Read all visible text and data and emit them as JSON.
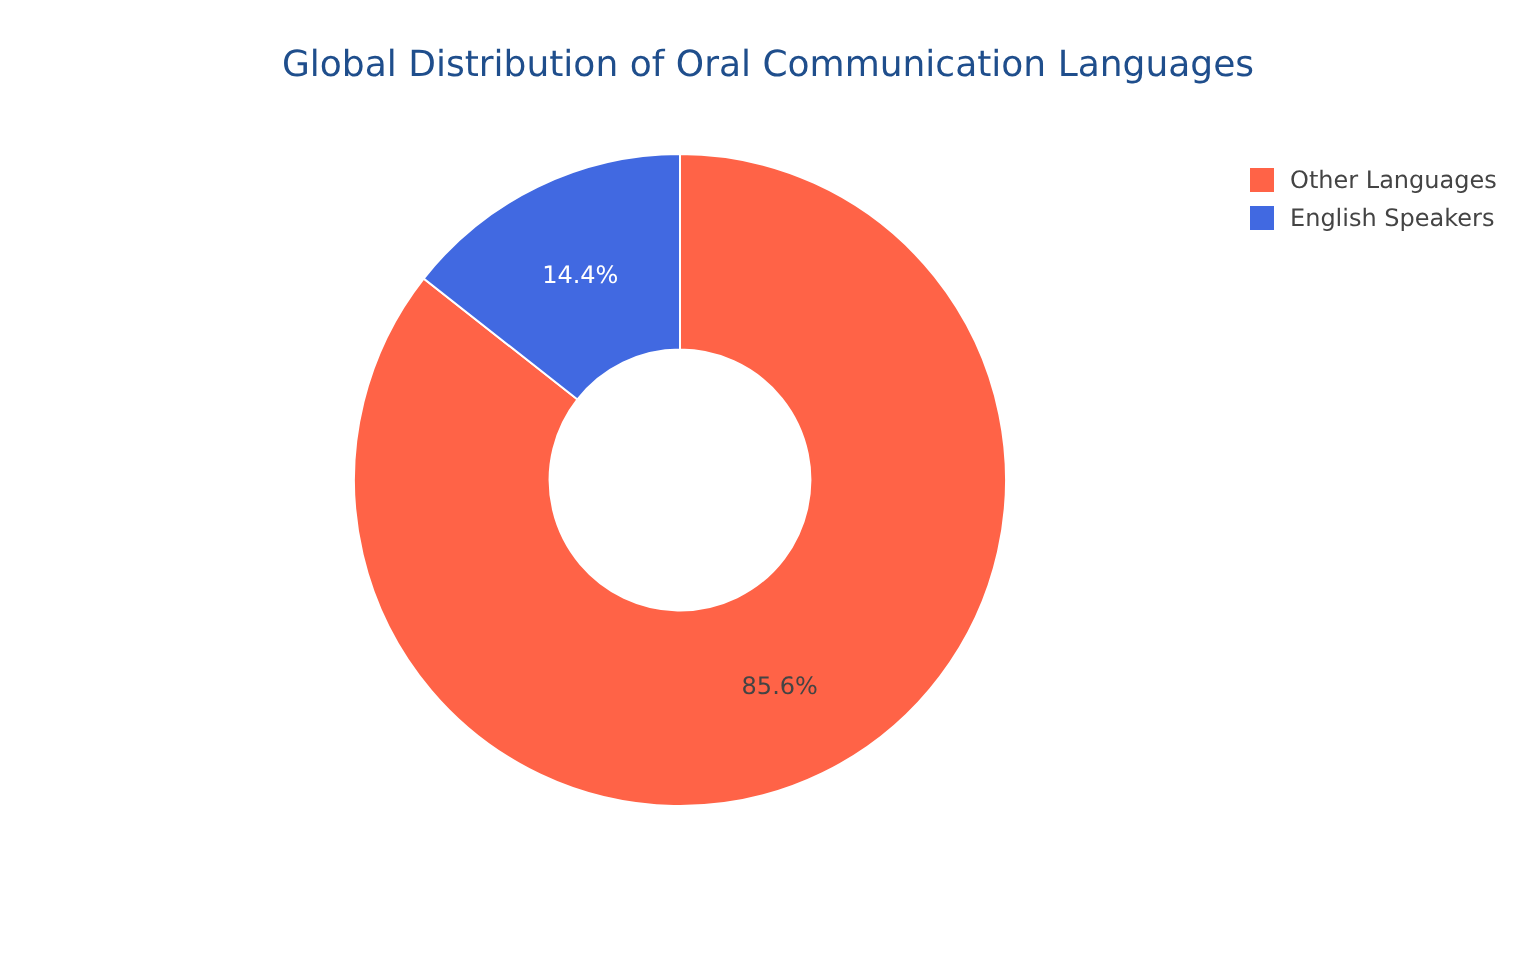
{
  "chart_data": {
    "type": "donut",
    "title": "Global Distribution of Oral Communication Languages",
    "categories": [
      "Other Languages",
      "English Speakers"
    ],
    "values": [
      85.6,
      14.4
    ],
    "colors": [
      "#ff6347",
      "#4169e1"
    ],
    "value_labels": [
      "85.6%",
      "14.4%"
    ],
    "legend": "top right"
  }
}
